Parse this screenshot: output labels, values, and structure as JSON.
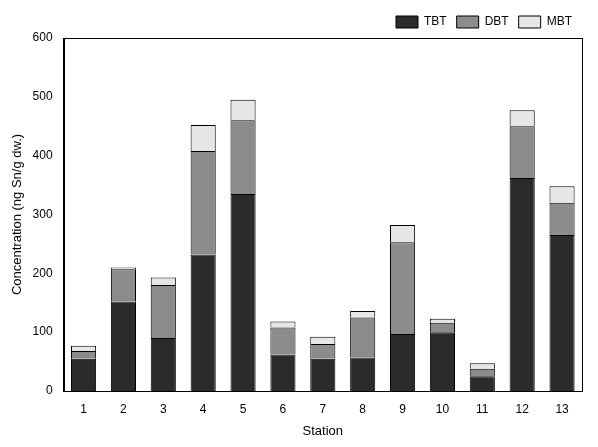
{
  "chart_data": {
    "type": "bar",
    "x_label": "Station",
    "y_label": "Concentration (ng Sn/g dw.)",
    "categories": [
      "1",
      "2",
      "3",
      "4",
      "5",
      "6",
      "7",
      "8",
      "9",
      "10",
      "11",
      "12",
      "13"
    ],
    "series": [
      {
        "name": "TBT",
        "color": "#2b2b2b",
        "values": [
          55,
          152,
          90,
          232,
          335,
          62,
          55,
          57,
          97,
          100,
          25,
          362,
          265
        ]
      },
      {
        "name": "DBT",
        "color": "#8c8c8c",
        "values": [
          13,
          55,
          90,
          176,
          125,
          46,
          25,
          68,
          156,
          16,
          13,
          88,
          55
        ]
      },
      {
        "name": "MBT",
        "color": "#e6e6e6",
        "values": [
          9,
          3,
          13,
          44,
          35,
          10,
          12,
          11,
          29,
          7,
          9,
          27,
          28
        ]
      }
    ],
    "stacked": true,
    "ylim": [
      0,
      600
    ],
    "yticks": [
      0,
      100,
      200,
      300,
      400,
      500,
      600
    ],
    "grid": false,
    "legend": "upper right"
  }
}
